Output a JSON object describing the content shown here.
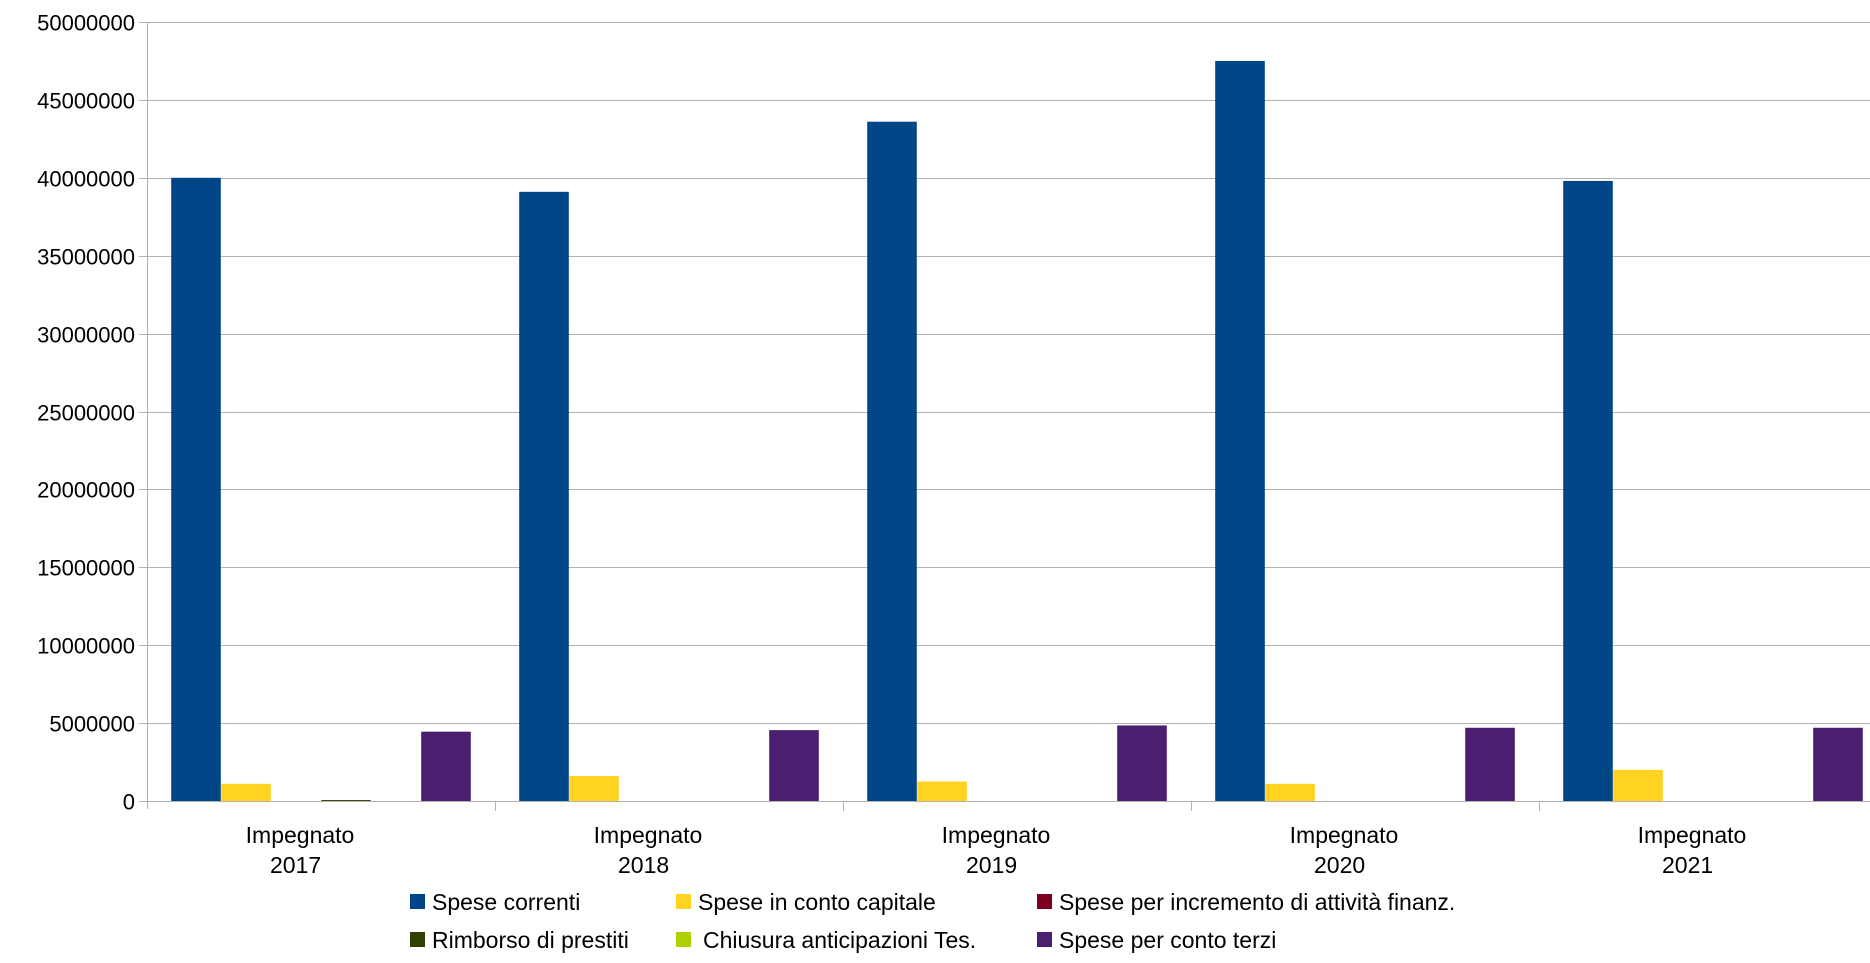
{
  "chart_data": {
    "type": "bar",
    "title": "",
    "xlabel": "",
    "ylabel": "",
    "ylim": [
      0,
      50000000
    ],
    "yticks": [
      0,
      5000000,
      10000000,
      15000000,
      20000000,
      25000000,
      30000000,
      35000000,
      40000000,
      45000000,
      50000000
    ],
    "grid": true,
    "legend_position": "bottom",
    "categories": [
      [
        "Impegnato",
        "2017"
      ],
      [
        "Impegnato",
        "2018"
      ],
      [
        "Impegnato",
        "2019"
      ],
      [
        "Impegnato",
        "2020"
      ],
      [
        "Impegnato",
        "2021"
      ]
    ],
    "series": [
      {
        "name": "Spese correnti",
        "color": "#004586",
        "values": [
          40000000,
          39100000,
          43600000,
          47500000,
          39800000
        ]
      },
      {
        "name": "Spese in conto capitale",
        "color": "#ffd320",
        "values": [
          1100000,
          1600000,
          1250000,
          1100000,
          2000000
        ]
      },
      {
        "name": "Spese per incremento di attività finanz.",
        "color": "#7e0021",
        "values": [
          0,
          0,
          0,
          0,
          0
        ]
      },
      {
        "name": "Rimborso di prestiti",
        "color": "#314004",
        "values": [
          60000,
          0,
          0,
          0,
          0
        ]
      },
      {
        "name": "Chiusura anticipazioni Tes.",
        "color": "#aecf00",
        "values": [
          0,
          0,
          0,
          0,
          0
        ]
      },
      {
        "name": "Spese per conto terzi",
        "color": "#4b1f6f",
        "values": [
          4450000,
          4550000,
          4850000,
          4700000,
          4700000
        ]
      }
    ]
  }
}
